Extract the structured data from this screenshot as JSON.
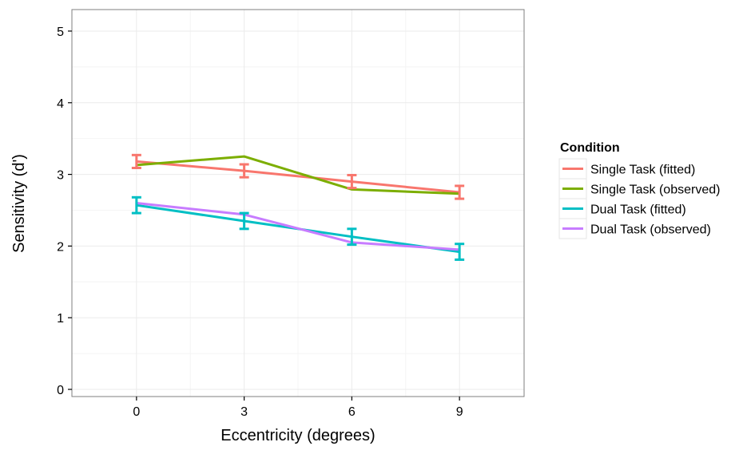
{
  "chart_data": {
    "type": "line",
    "xlabel": "Eccentricity (degrees)",
    "ylabel": "Sensitivity (d')",
    "x": [
      0,
      3,
      6,
      9
    ],
    "xticks": [
      "0",
      "3",
      "6",
      "9"
    ],
    "yticks": [
      "0",
      "1",
      "2",
      "3",
      "4",
      "5"
    ],
    "xlim": [
      -1.8,
      10.8
    ],
    "ylim": [
      -0.1,
      5.3
    ],
    "grid": true,
    "legend": {
      "title": "Condition",
      "position": "right"
    },
    "series": [
      {
        "name": "Single Task (fitted)",
        "color": "#F8766D",
        "values": [
          3.18,
          3.05,
          2.9,
          2.75
        ],
        "error": [
          0.09,
          0.09,
          0.09,
          0.09
        ]
      },
      {
        "name": "Single Task (observed)",
        "color": "#7CAE00",
        "values": [
          3.13,
          3.25,
          2.79,
          2.73
        ]
      },
      {
        "name": "Dual Task (fitted)",
        "color": "#00BFC4",
        "values": [
          2.57,
          2.35,
          2.13,
          1.92
        ],
        "error": [
          0.11,
          0.11,
          0.11,
          0.11
        ]
      },
      {
        "name": "Dual Task (observed)",
        "color": "#C77CFF",
        "values": [
          2.6,
          2.44,
          2.05,
          1.95
        ]
      }
    ]
  }
}
